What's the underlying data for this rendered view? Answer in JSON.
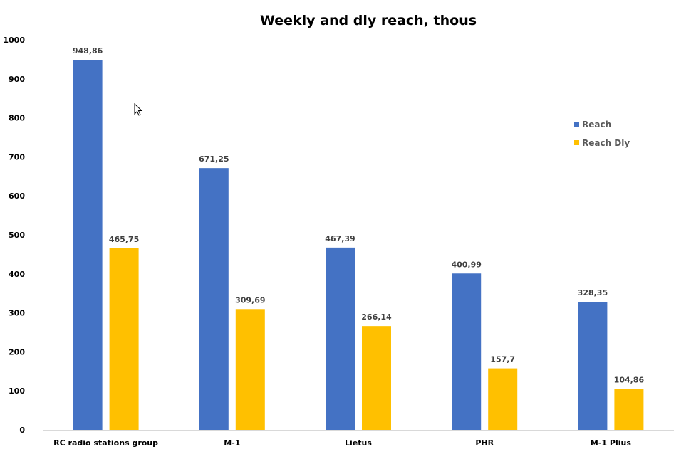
{
  "chart_data": {
    "type": "bar",
    "title": "Weekly and dly reach, thous",
    "xlabel": "",
    "ylabel": "",
    "categories": [
      "RC radio stations group",
      "M-1",
      "Lietus",
      "PHR",
      "M-1 Plius"
    ],
    "series": [
      {
        "name": "Reach",
        "color": "#4472c4",
        "values": [
          948.86,
          671.25,
          467.39,
          400.99,
          328.35
        ],
        "labels": [
          "948,86",
          "671,25",
          "467,39",
          "400,99",
          "328,35"
        ]
      },
      {
        "name": "Reach Dly",
        "color": "#ffc000",
        "values": [
          465.75,
          309.69,
          266.14,
          157.7,
          104.86
        ],
        "labels": [
          "465,75",
          "309,69",
          "266,14",
          "157,7",
          "104,86"
        ]
      }
    ],
    "ylim": [
      0,
      1000
    ],
    "yticks": [
      "0",
      "100",
      "200",
      "300",
      "400",
      "500",
      "600",
      "700",
      "800",
      "900",
      "1000"
    ],
    "grid": false,
    "legend_position": "right"
  },
  "cursor_icon": "mouse-pointer-icon"
}
